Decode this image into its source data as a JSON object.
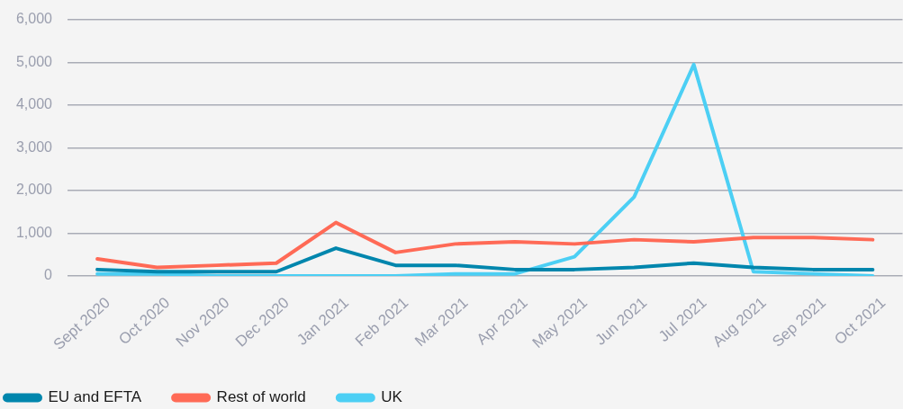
{
  "chart_data": {
    "type": "line",
    "categories": [
      "Sept 2020",
      "Oct 2020",
      "Nov 2020",
      "Dec 2020",
      "Jan 2021",
      "Feb 2021",
      "Mar 2021",
      "Apr 2021",
      "May 2021",
      "Jun 2021",
      "Jul 2021",
      "Aug 2021",
      "Sep 2021",
      "Oct 2021"
    ],
    "series": [
      {
        "name": "EU and EFTA",
        "color": "#0086ad",
        "values": [
          150,
          100,
          100,
          100,
          650,
          250,
          250,
          150,
          150,
          200,
          300,
          200,
          150,
          150
        ]
      },
      {
        "name": "Rest of world",
        "color": "#ff6a56",
        "values": [
          400,
          200,
          250,
          300,
          1250,
          550,
          750,
          800,
          750,
          850,
          800,
          900,
          900,
          850
        ]
      },
      {
        "name": "UK",
        "color": "#4ccff4",
        "values": [
          50,
          50,
          0,
          0,
          0,
          0,
          50,
          50,
          450,
          1850,
          4950,
          100,
          50,
          0
        ]
      }
    ],
    "ylim": [
      0,
      6000
    ],
    "yticks": [
      0,
      {
        "value": 1000,
        "label": "1,000"
      },
      {
        "value": 2000,
        "label": "2,000"
      },
      {
        "value": 3000,
        "label": "3,000"
      },
      {
        "value": 4000,
        "label": "4,000"
      },
      {
        "value": 5000,
        "label": "5,000"
      },
      {
        "value": 6000,
        "label": "6,000"
      }
    ],
    "grid": "y",
    "legend": "bottom left",
    "marker": "none",
    "line_style": "solid"
  }
}
